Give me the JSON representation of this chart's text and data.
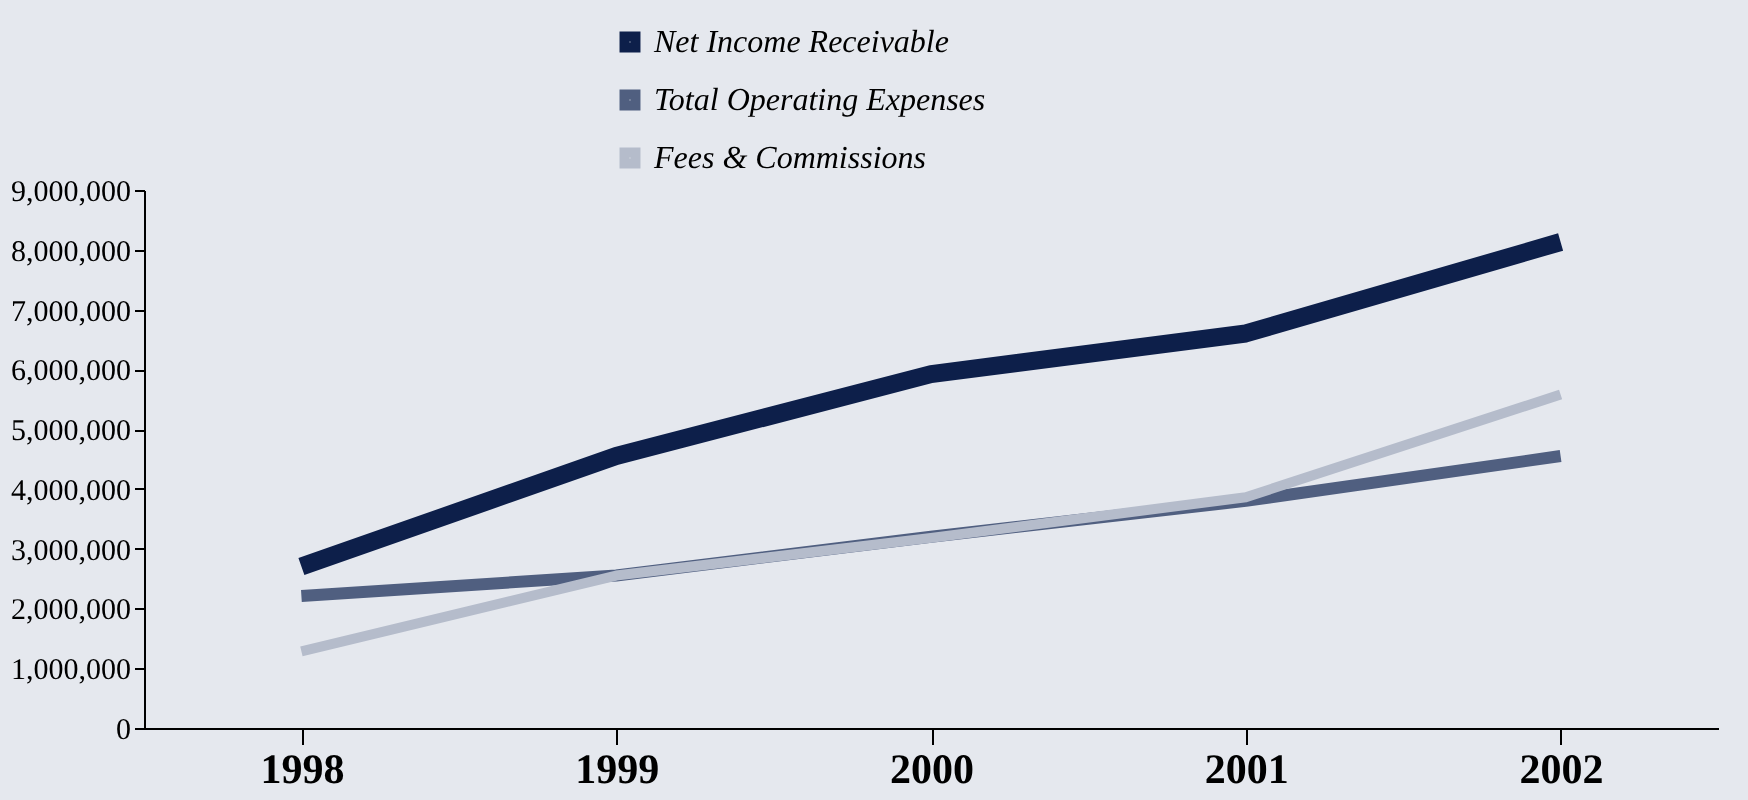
{
  "chart_data": {
    "type": "line",
    "categories": [
      "1998",
      "1999",
      "2000",
      "2001",
      "2002"
    ],
    "series": [
      {
        "name": "Net Income Receivable",
        "color": "#0d1f4a",
        "values": [
          2700000,
          4550000,
          5920000,
          6600000,
          8130000
        ]
      },
      {
        "name": "Total Operating Expenses",
        "color": "#505f80",
        "values": [
          2210000,
          2550000,
          3200000,
          3800000,
          4550000
        ]
      },
      {
        "name": "Fees & Commissions",
        "color": "#b5bccb",
        "values": [
          1280000,
          2550000,
          3180000,
          3860000,
          5580000
        ]
      }
    ],
    "ylim": [
      0,
      9000000
    ],
    "yticks": [
      0,
      {
        "value": 1000000,
        "label": "1,000,000"
      },
      {
        "value": 2000000,
        "label": "2,000,000"
      },
      {
        "value": 3000000,
        "label": "3,000,000"
      },
      {
        "value": 4000000,
        "label": "4,000,000"
      },
      {
        "value": 5000000,
        "label": "5,000,000"
      },
      {
        "value": 6000000,
        "label": "6,000,000"
      },
      {
        "value": 7000000,
        "label": "7,000,000"
      },
      {
        "value": 8000000,
        "label": "8,000,000"
      },
      {
        "value": 9000000,
        "label": "9,000,000"
      }
    ],
    "grid": false,
    "legend": "top",
    "marker": "none",
    "line_style": "solid"
  }
}
